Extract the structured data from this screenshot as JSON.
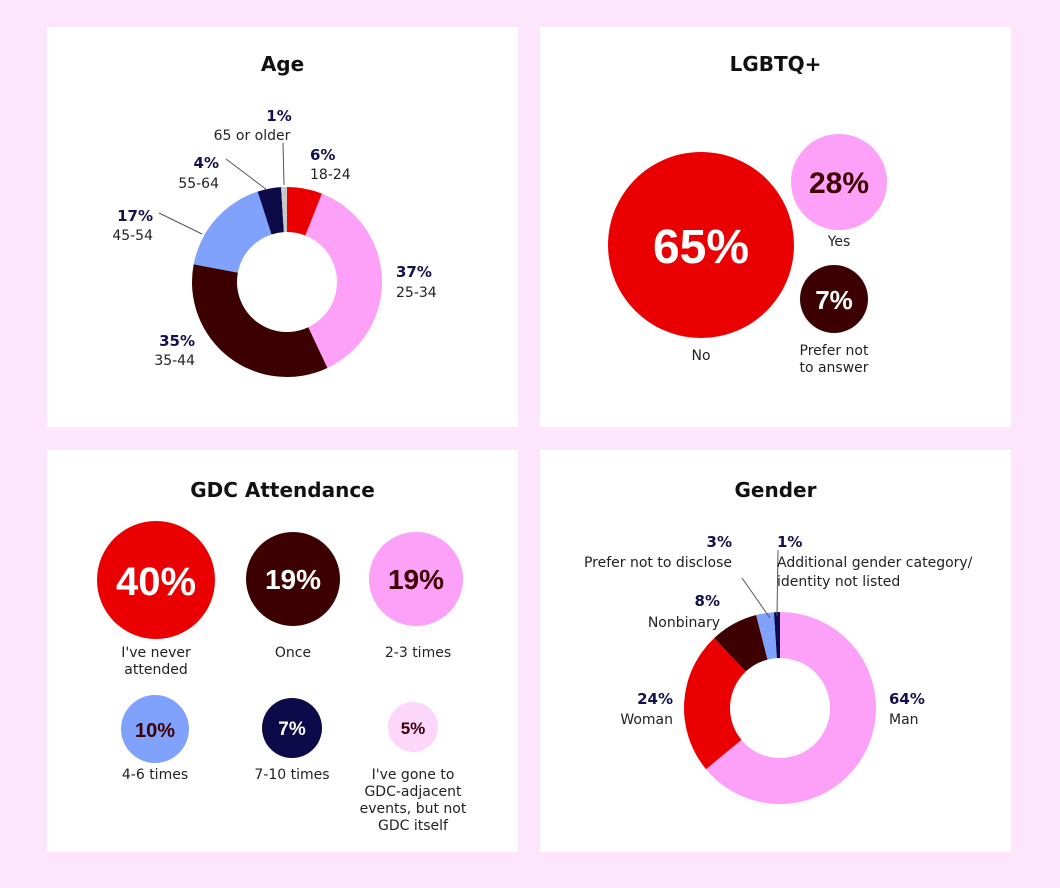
{
  "colors": {
    "background": "#fde6fb",
    "red": "#ea0000",
    "pink": "#fca0f8",
    "maroon": "#3d0000",
    "blue": "#80a2fc",
    "navy": "#0c0a48",
    "grey": "#c8c8c8",
    "light_pink": "#fcd6fb",
    "pct_text": "#14114d"
  },
  "chart_data": [
    {
      "type": "pie",
      "title": "Age",
      "categories": [
        "18-24",
        "25-34",
        "35-44",
        "45-54",
        "55-64",
        "65 or older"
      ],
      "values": [
        6,
        37,
        35,
        17,
        4,
        1
      ],
      "labels": [
        "6%",
        "37%",
        "35%",
        "17%",
        "4%",
        "1%"
      ]
    },
    {
      "type": "bubble",
      "title": "LGBTQ+",
      "categories": [
        "No",
        "Yes",
        "Prefer not to answer"
      ],
      "values": [
        65,
        28,
        7
      ],
      "labels": [
        "65%",
        "28%",
        "7%"
      ]
    },
    {
      "type": "bubble",
      "title": "GDC Attendance",
      "categories": [
        "I've never attended",
        "Once",
        "2-3 times",
        "4-6 times",
        "7-10 times",
        "I've gone to GDC-adjacent events, but not GDC itself"
      ],
      "values": [
        40,
        19,
        19,
        10,
        7,
        5
      ],
      "labels": [
        "40%",
        "19%",
        "19%",
        "10%",
        "7%",
        "5%"
      ]
    },
    {
      "type": "pie",
      "title": "Gender",
      "categories": [
        "Man",
        "Woman",
        "Nonbinary",
        "Prefer not to disclose",
        "Additional gender category/ identity not listed"
      ],
      "values": [
        64,
        24,
        8,
        3,
        1
      ],
      "labels": [
        "64%",
        "24%",
        "8%",
        "3%",
        "1%"
      ]
    }
  ],
  "text": {
    "age": {
      "p65": "1%",
      "l65": "65 or older",
      "p18": "6%",
      "l18": "18-24",
      "p55": "4%",
      "l55": "55-64",
      "p45": "17%",
      "l45": "45-54",
      "p25": "37%",
      "l25": "25-34",
      "p35": "35%",
      "l35": "35-44"
    },
    "lgbtq": {
      "l_no": "No",
      "l_yes": "Yes",
      "l_pref1": "Prefer not",
      "l_pref2": "to answer"
    },
    "gdc": {
      "l_never1": "I've never",
      "l_never2": "attended",
      "l_once": "Once",
      "l_23": "2-3 times",
      "l_46": "4-6 times",
      "l_710": "7-10 times",
      "l_adj1": "I've gone to",
      "l_adj2": "GDC-adjacent",
      "l_adj3": "events, but not",
      "l_adj4": "GDC itself"
    },
    "gender": {
      "p_man": "64%",
      "l_man": "Man",
      "p_woman": "24%",
      "l_woman": "Woman",
      "p_nb": "8%",
      "l_nb": "Nonbinary",
      "p_pnd": "3%",
      "l_pnd": "Prefer not to disclose",
      "p_add": "1%",
      "l_add1": "Additional gender category/",
      "l_add2": "identity not listed"
    }
  }
}
